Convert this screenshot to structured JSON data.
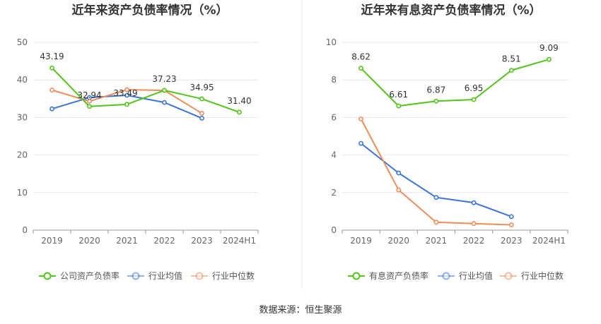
{
  "source": "数据来源：恒生聚源",
  "chart_data": [
    {
      "type": "line",
      "title": "近年来资产负债率情况（%）",
      "categories": [
        "2019",
        "2020",
        "2021",
        "2022",
        "2023",
        "2024H1"
      ],
      "ylim": [
        0,
        50
      ],
      "yticks": [
        "0",
        "10",
        "20",
        "30",
        "40",
        "50"
      ],
      "grid": true,
      "legend_position": "bottom",
      "series": [
        {
          "name": "公司资产负债率",
          "color": "#52c41a",
          "values": [
            43.19,
            32.94,
            33.49,
            37.23,
            34.95,
            31.4
          ],
          "labels": [
            "43.19",
            "32.94",
            "33.49",
            "37.23",
            "34.95",
            "31.40"
          ]
        },
        {
          "name": "行业均值",
          "color": "#3b73d9",
          "values": [
            32.3,
            35.3,
            35.9,
            34.0,
            29.8,
            null
          ]
        },
        {
          "name": "行业中位数",
          "color": "#f08c5a",
          "values": [
            37.3,
            34.3,
            37.4,
            37.2,
            31.1,
            null
          ]
        }
      ]
    },
    {
      "type": "line",
      "title": "近年来有息资产负债率情况（%）",
      "categories": [
        "2019",
        "2020",
        "2021",
        "2022",
        "2023",
        "2024H1"
      ],
      "ylim": [
        0,
        10
      ],
      "yticks": [
        "0",
        "2",
        "4",
        "6",
        "8",
        "10"
      ],
      "grid": true,
      "legend_position": "bottom",
      "series": [
        {
          "name": "有息资产负债率",
          "color": "#52c41a",
          "values": [
            8.62,
            6.61,
            6.87,
            6.95,
            8.51,
            9.09
          ],
          "labels": [
            "8.62",
            "6.61",
            "6.87",
            "6.95",
            "8.51",
            "9.09"
          ]
        },
        {
          "name": "行业均值",
          "color": "#3b73d9",
          "values": [
            4.62,
            3.04,
            1.74,
            1.46,
            0.72,
            null
          ]
        },
        {
          "name": "行业中位数",
          "color": "#f08c5a",
          "values": [
            5.92,
            2.14,
            0.42,
            0.35,
            0.28,
            null
          ]
        }
      ]
    }
  ]
}
